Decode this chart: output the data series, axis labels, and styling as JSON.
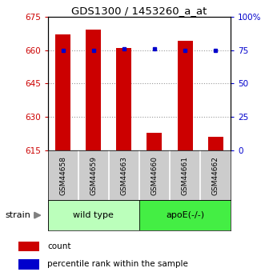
{
  "title": "GDS1300 / 1453260_a_at",
  "samples": [
    "GSM44658",
    "GSM44659",
    "GSM44663",
    "GSM44660",
    "GSM44661",
    "GSM44662"
  ],
  "counts": [
    667,
    669,
    661,
    623,
    664,
    621
  ],
  "percentile_ranks": [
    75,
    75,
    76,
    76,
    75,
    75
  ],
  "ylim_left": [
    615,
    675
  ],
  "ylim_right": [
    0,
    100
  ],
  "yticks_left": [
    615,
    630,
    645,
    660,
    675
  ],
  "yticks_right": [
    0,
    25,
    50,
    75,
    100
  ],
  "ytick_labels_left": [
    "615",
    "630",
    "645",
    "660",
    "675"
  ],
  "ytick_labels_right": [
    "0",
    "25",
    "50",
    "75",
    "100%"
  ],
  "bar_color": "#cc0000",
  "dot_color": "#0000cc",
  "groups": [
    {
      "label": "wild type",
      "indices": [
        0,
        1,
        2
      ],
      "color": "#bbffbb"
    },
    {
      "label": "apoE(-/-)",
      "indices": [
        3,
        4,
        5
      ],
      "color": "#44ee44"
    }
  ],
  "strain_label": "strain",
  "background_color": "#ffffff",
  "grid_color": "#888888",
  "bar_width": 0.5,
  "figsize": [
    3.41,
    3.45
  ],
  "dpi": 100
}
